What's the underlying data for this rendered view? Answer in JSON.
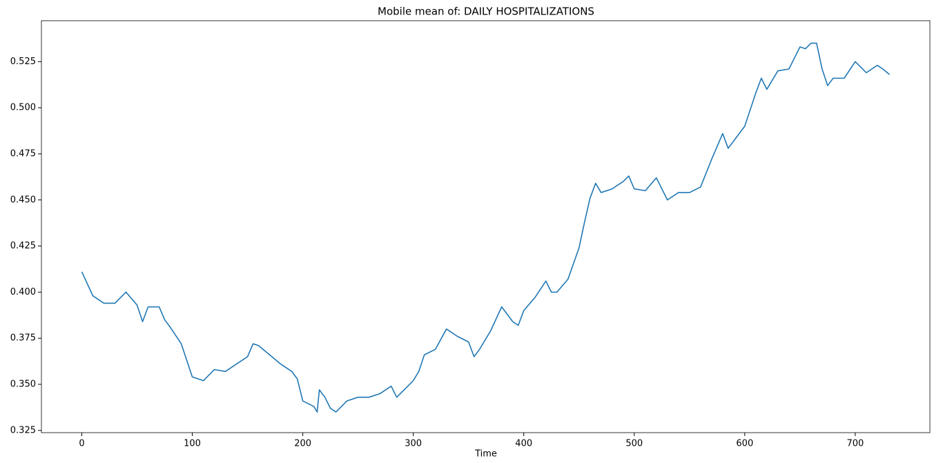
{
  "chart_data": {
    "type": "line",
    "title": "Mobile mean of: DAILY HOSPITALIZATIONS",
    "xlabel": "Time",
    "xlim": [
      -36.55,
      767.55
    ],
    "ylim": [
      0.3238,
      0.5472
    ],
    "xticks": [
      0,
      100,
      200,
      300,
      400,
      500,
      600,
      700
    ],
    "yticks": [
      0.325,
      {
        "value": 0.35,
        "label": "0.350"
      },
      0.375,
      {
        "value": 0.4,
        "label": "0.400"
      },
      0.425,
      {
        "value": 0.45,
        "label": "0.450"
      },
      0.475,
      {
        "value": 0.5,
        "label": "0.500"
      },
      0.525
    ],
    "series": [
      {
        "color": "#1f77b4",
        "x": [
          0,
          10,
          20,
          30,
          40,
          50,
          55,
          60,
          70,
          75,
          80,
          90,
          95,
          100,
          110,
          120,
          130,
          140,
          150,
          155,
          160,
          170,
          180,
          190,
          195,
          200,
          210,
          213,
          215,
          220,
          225,
          230,
          240,
          250,
          260,
          270,
          280,
          285,
          290,
          300,
          305,
          310,
          320,
          330,
          340,
          350,
          355,
          360,
          370,
          380,
          390,
          395,
          400,
          410,
          420,
          425,
          430,
          440,
          450,
          455,
          460,
          465,
          470,
          480,
          490,
          495,
          500,
          510,
          520,
          530,
          540,
          550,
          560,
          570,
          580,
          585,
          590,
          600,
          610,
          615,
          620,
          630,
          640,
          650,
          655,
          660,
          665,
          670,
          675,
          680,
          690,
          700,
          710,
          720,
          725,
          731
        ],
        "values": [
          0.411,
          0.398,
          0.394,
          0.394,
          0.4,
          0.393,
          0.384,
          0.392,
          0.392,
          0.385,
          0.381,
          0.372,
          0.363,
          0.354,
          0.352,
          0.358,
          0.357,
          0.361,
          0.365,
          0.372,
          0.371,
          0.366,
          0.361,
          0.357,
          0.353,
          0.341,
          0.338,
          0.335,
          0.347,
          0.343,
          0.337,
          0.335,
          0.341,
          0.343,
          0.343,
          0.345,
          0.349,
          0.343,
          0.346,
          0.352,
          0.357,
          0.366,
          0.369,
          0.38,
          0.376,
          0.373,
          0.365,
          0.369,
          0.379,
          0.392,
          0.384,
          0.382,
          0.39,
          0.397,
          0.406,
          0.4,
          0.4,
          0.407,
          0.424,
          0.438,
          0.451,
          0.459,
          0.454,
          0.456,
          0.46,
          0.463,
          0.456,
          0.455,
          0.462,
          0.45,
          0.454,
          0.454,
          0.457,
          0.472,
          0.486,
          0.478,
          0.482,
          0.49,
          0.508,
          0.516,
          0.51,
          0.52,
          0.521,
          0.533,
          0.532,
          0.535,
          0.535,
          0.521,
          0.512,
          0.516,
          0.516,
          0.525,
          0.519,
          0.523,
          0.521,
          0.518
        ]
      }
    ]
  }
}
